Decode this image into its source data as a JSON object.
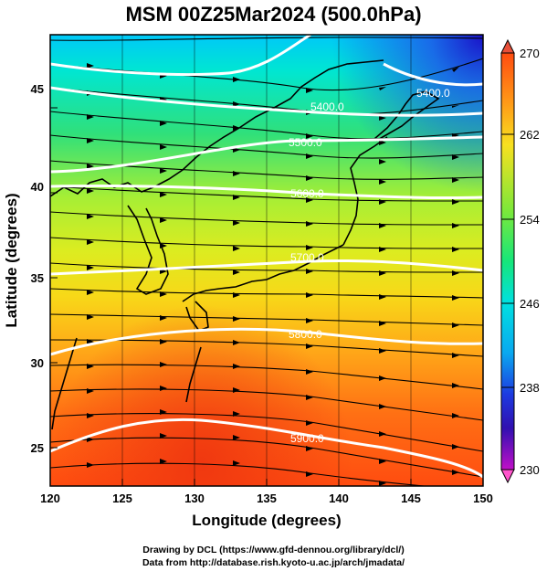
{
  "title": "MSM 00Z25Mar2024 (500.0hPa)",
  "axes": {
    "x_label": "Longitude (degrees)",
    "y_label": "Latitude  (degrees)",
    "x_ticks": [
      "120",
      "125",
      "130",
      "135",
      "140",
      "145",
      "150"
    ],
    "y_ticks": [
      "25",
      "30",
      "35",
      "40",
      "45"
    ]
  },
  "colorbar": {
    "labels": [
      "270",
      "262",
      "254",
      "246",
      "238",
      "230"
    ],
    "colors": {
      "top_arrow": "#e8503a",
      "bottom_arrow": "#ff55cc"
    }
  },
  "contours": {
    "labels": [
      "5400.0",
      "5500.0",
      "5600.0",
      "5700.0",
      "5800.0",
      "5900.0"
    ]
  },
  "footer": {
    "line1": "Drawing by DCL (https://www.gfd-dennou.org/library/dcl/)",
    "line2": "Data from http://database.rish.kyoto-u.ac.jp/arch/jmadata/"
  }
}
